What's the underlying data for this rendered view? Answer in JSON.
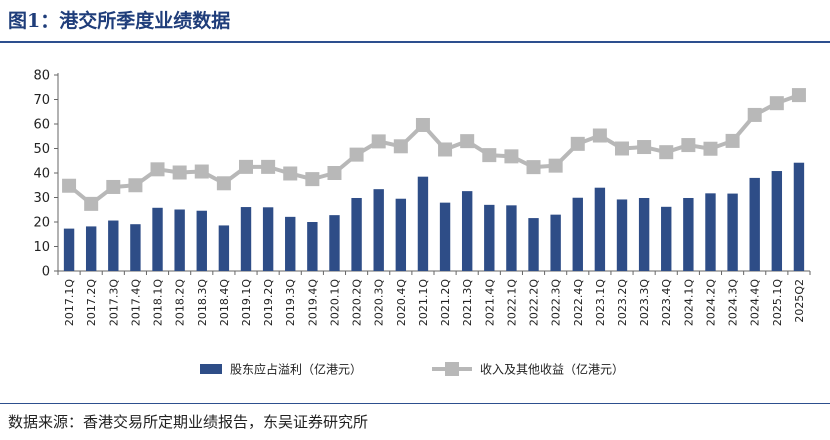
{
  "header": {
    "title": "图1：港交所季度业绩数据"
  },
  "footer": {
    "source": "数据来源：香港交易所定期业绩报告，东吴证券研究所"
  },
  "colors": {
    "bar": "#2e4d87",
    "line": "#b8b8b8",
    "rule": "#2d4f8e",
    "title": "#1f3d7a"
  },
  "chart_data": {
    "type": "bar",
    "title": "",
    "xlabel": "",
    "ylabel": "",
    "ylim": [
      0,
      80
    ],
    "yticks": [
      0,
      10,
      20,
      30,
      40,
      50,
      60,
      70,
      80
    ],
    "grid": false,
    "legend_position": "bottom",
    "categories": [
      "2017.1Q",
      "2017.2Q",
      "2017.3Q",
      "2017.4Q",
      "2018.1Q",
      "2018.2Q",
      "2018.3Q",
      "2018.4Q",
      "2019.1Q",
      "2019.2Q",
      "2019.3Q",
      "2019.4Q",
      "2020.1Q",
      "2020.2Q",
      "2020.3Q",
      "2020.4Q",
      "2021.1Q",
      "2021.2Q",
      "2021.3Q",
      "2021.4Q",
      "2022.1Q",
      "2022.2Q",
      "2022.3Q",
      "2022.4Q",
      "2023.1Q",
      "2023.2Q",
      "2023.3Q",
      "2023.4Q",
      "2024.1Q",
      "2024.2Q",
      "2024.3Q",
      "2024.4Q",
      "2025.1Q",
      "2025Q2"
    ],
    "series": [
      {
        "name": "股东应占溢利（亿港元）",
        "type": "bar",
        "values": [
          17.3,
          18.2,
          20.6,
          19.1,
          25.8,
          25.1,
          24.6,
          18.6,
          26.1,
          26.0,
          22.1,
          20.0,
          22.8,
          29.8,
          33.4,
          29.5,
          38.5,
          27.9,
          32.6,
          27.0,
          26.8,
          21.6,
          23.0,
          29.9,
          34.0,
          29.2,
          29.8,
          26.2,
          29.8,
          31.7,
          31.6,
          38.0,
          40.8,
          44.2
        ]
      },
      {
        "name": "收入及其他收益（亿港元）",
        "type": "line",
        "values": [
          34.8,
          27.4,
          34.3,
          35.0,
          41.5,
          40.2,
          40.6,
          35.8,
          42.5,
          42.5,
          39.8,
          37.5,
          40.0,
          47.5,
          52.9,
          50.9,
          59.6,
          49.6,
          53.0,
          47.3,
          46.8,
          42.4,
          43.0,
          51.9,
          55.3,
          50.0,
          50.6,
          48.5,
          51.4,
          49.9,
          53.1,
          63.7,
          68.5,
          71.8
        ]
      }
    ]
  }
}
